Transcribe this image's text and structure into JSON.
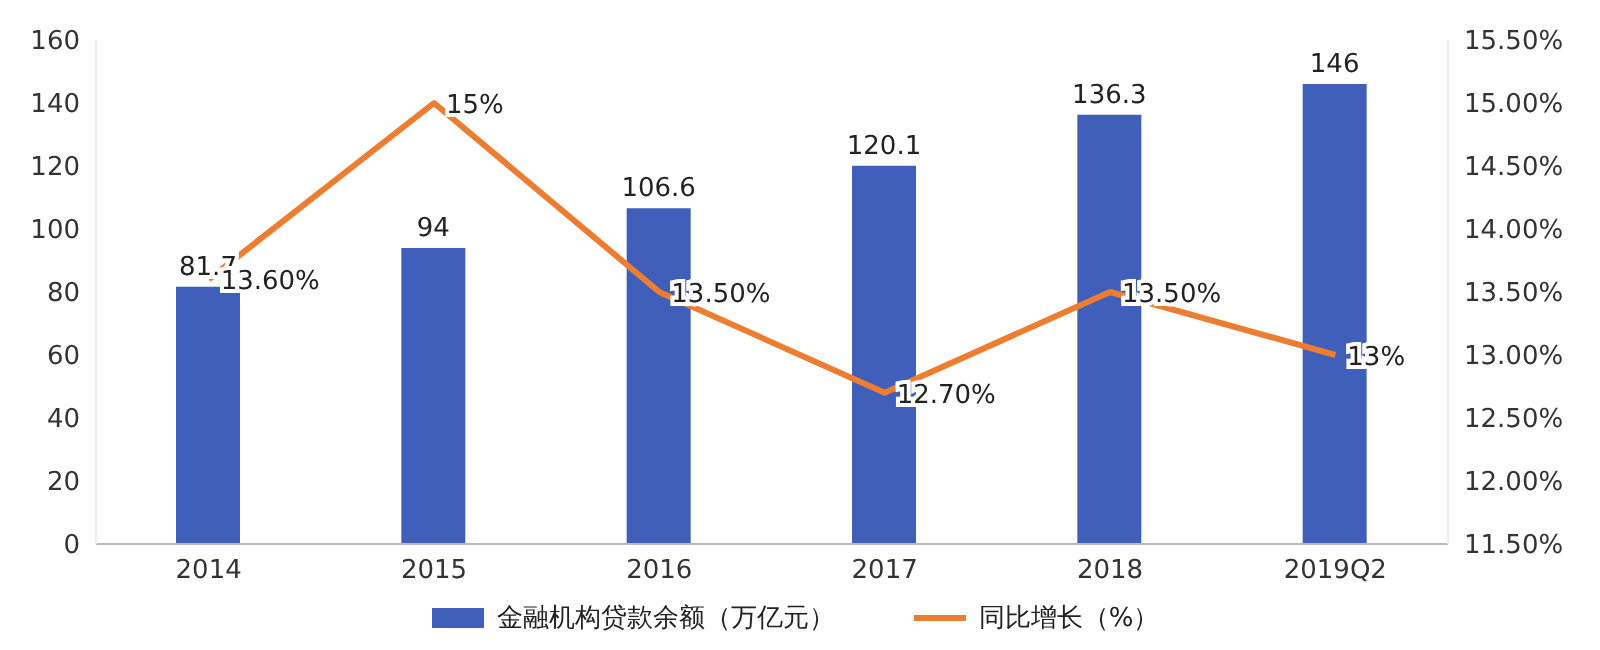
{
  "chart_data": {
    "type": "bar",
    "categories": [
      "2014",
      "2015",
      "2016",
      "2017",
      "2018",
      "2019Q2"
    ],
    "series": [
      {
        "name": "金融机构贷款余额（万亿元）",
        "color": "#3f5fba",
        "values": [
          81.7,
          94,
          106.6,
          120.1,
          136.3,
          146
        ],
        "value_labels": [
          "81.7",
          "94",
          "106.6",
          "120.1",
          "136.3",
          "146"
        ]
      },
      {
        "name": "同比增长（%）",
        "type": "line",
        "axis": "y2",
        "color": "#ed7d31",
        "values": [
          13.6,
          15,
          13.5,
          12.7,
          13.5,
          13
        ],
        "value_labels": [
          "13.60%",
          "15%",
          "13.50%",
          "12.70%",
          "13.50%",
          "13%"
        ]
      }
    ],
    "ylim": [
      0,
      160
    ],
    "yticks": [
      0,
      20,
      40,
      60,
      80,
      100,
      120,
      140,
      160
    ],
    "y2lim": [
      11.5,
      15.5
    ],
    "y2ticks": [
      {
        "value": 11.5,
        "label": "11.50%"
      },
      {
        "value": 12,
        "label": "12.00%"
      },
      {
        "value": 12.5,
        "label": "12.50%"
      },
      {
        "value": 13,
        "label": "13.00%"
      },
      {
        "value": 13.5,
        "label": "13.50%"
      },
      {
        "value": 14,
        "label": "14.00%"
      },
      {
        "value": 14.5,
        "label": "14.50%"
      },
      {
        "value": 15,
        "label": "15.00%"
      },
      {
        "value": 15.5,
        "label": "15.50%"
      }
    ],
    "legend": "bottom",
    "marker": "none",
    "line_style": "solid"
  }
}
